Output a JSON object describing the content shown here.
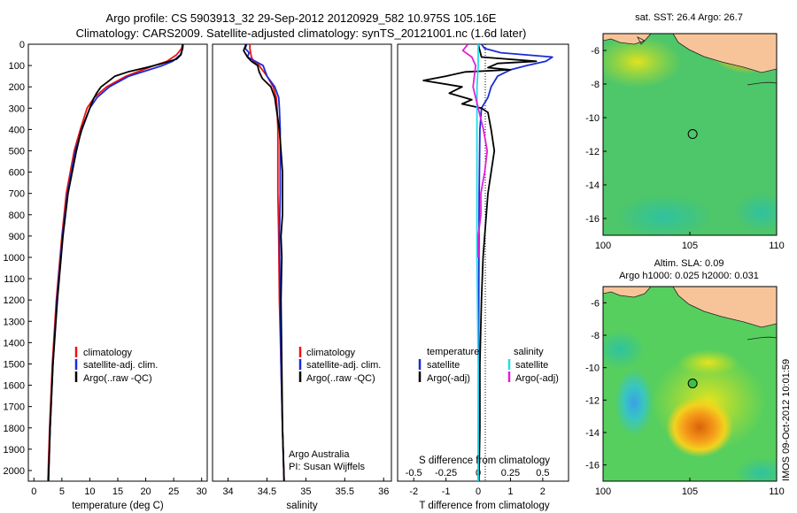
{
  "header": {
    "title_line1": "Argo profile: CS 5903913_32 29-Sep-2012 20120929_582 10.975S 105.16E",
    "title_line2": "Climatology: CARS2009. Satellite-adjusted climatology: synTS_20121001.nc (1.6d later)"
  },
  "colors": {
    "climatology": "#ee1111",
    "satellite": "#1a2bd6",
    "argo": "#000000",
    "sat_salinity": "#22dde8",
    "argo_salinity": "#e020d8",
    "land": "#f7c49a"
  },
  "chart_data": [
    {
      "type": "line",
      "id": "temperature",
      "xlabel": "temperature (deg C)",
      "ylabel": "",
      "xlim": [
        -1,
        31
      ],
      "ylim": [
        2050,
        0
      ],
      "xticks": [
        0,
        5,
        10,
        15,
        20,
        25,
        30
      ],
      "yticks": [
        0,
        100,
        200,
        300,
        400,
        500,
        600,
        700,
        800,
        900,
        1000,
        1100,
        1200,
        1300,
        1400,
        1500,
        1600,
        1700,
        1800,
        1900,
        2000
      ],
      "legend": [
        "climatology",
        "satellite-adj. clim.",
        "Argo(..raw -QC)"
      ],
      "series": [
        {
          "name": "climatology",
          "depth": [
            0,
            20,
            50,
            80,
            100,
            150,
            200,
            250,
            300,
            400,
            500,
            700,
            900,
            1200,
            1500,
            1800,
            2050
          ],
          "values": [
            26.6,
            26.4,
            25.5,
            23.8,
            21.5,
            16.5,
            13.0,
            10.8,
            9.5,
            8.3,
            7.2,
            5.8,
            5.0,
            4.0,
            3.3,
            2.8,
            2.5
          ]
        },
        {
          "name": "satellite-adj. clim.",
          "depth": [
            0,
            20,
            50,
            80,
            100,
            150,
            200,
            250,
            300,
            400,
            500,
            700,
            900,
            1200,
            1500,
            1800,
            2050
          ],
          "values": [
            26.7,
            26.6,
            26.2,
            24.8,
            23.0,
            17.0,
            13.5,
            11.3,
            10.0,
            8.6,
            7.4,
            6.0,
            5.1,
            4.1,
            3.4,
            2.9,
            2.6
          ]
        },
        {
          "name": "Argo(..raw -QC)",
          "depth": [
            0,
            20,
            50,
            70,
            90,
            110,
            130,
            150,
            180,
            200,
            230,
            260,
            300,
            400,
            500,
            700,
            900,
            1200,
            1500,
            1800,
            2050
          ],
          "values": [
            26.6,
            26.6,
            26.3,
            25.5,
            23.0,
            20.0,
            16.8,
            14.5,
            13.0,
            12.0,
            11.2,
            10.6,
            10.0,
            8.5,
            7.6,
            6.1,
            5.2,
            4.2,
            3.4,
            2.9,
            2.6
          ]
        }
      ]
    },
    {
      "type": "line",
      "id": "salinity",
      "xlabel": "salinity",
      "ylabel": "",
      "xlim": [
        33.8,
        36.1
      ],
      "ylim": [
        2050,
        0
      ],
      "xticks": [
        34,
        34.5,
        35,
        35.5,
        36
      ],
      "legend": [
        "climatology",
        "satellite-adj. clim.",
        "Argo(..raw -QC)"
      ],
      "annotations": [
        "Argo Australia",
        "PI: Susan Wijffels"
      ],
      "series": [
        {
          "name": "climatology",
          "depth": [
            0,
            20,
            40,
            60,
            80,
            100,
            150,
            200,
            250,
            300,
            400,
            500,
            700,
            900,
            1200,
            1500,
            1800,
            2050
          ],
          "values": [
            34.28,
            34.28,
            34.29,
            34.3,
            34.33,
            34.4,
            34.5,
            34.58,
            34.62,
            34.63,
            34.64,
            34.64,
            34.64,
            34.65,
            34.66,
            34.68,
            34.7,
            34.72
          ]
        },
        {
          "name": "satellite-adj. clim.",
          "depth": [
            0,
            20,
            40,
            60,
            80,
            100,
            150,
            200,
            250,
            300,
            400,
            500,
            700,
            900,
            1200,
            1500,
            1800,
            2050
          ],
          "values": [
            34.24,
            34.22,
            34.27,
            34.25,
            34.35,
            34.45,
            34.5,
            34.6,
            34.65,
            34.66,
            34.67,
            34.67,
            34.67,
            34.66,
            34.67,
            34.68,
            34.7,
            34.72
          ]
        },
        {
          "name": "Argo(..raw -QC)",
          "depth": [
            0,
            30,
            60,
            80,
            100,
            130,
            160,
            200,
            250,
            300,
            400,
            500,
            600,
            700,
            800,
            900,
            1000,
            1200,
            1500,
            1800,
            2050
          ],
          "values": [
            34.23,
            34.2,
            34.25,
            34.3,
            34.38,
            34.4,
            34.44,
            34.55,
            34.6,
            34.62,
            34.66,
            34.68,
            34.7,
            34.7,
            34.7,
            34.68,
            34.69,
            34.68,
            34.69,
            34.7,
            34.72
          ]
        }
      ]
    },
    {
      "type": "line",
      "id": "difference",
      "xlabel": "T difference from climatology",
      "xlabel_top": "S difference from climatology",
      "xlim": [
        -2.5,
        2.8
      ],
      "ylim": [
        2050,
        0
      ],
      "xticks": [
        -2,
        -1,
        0,
        1,
        2
      ],
      "xticks_top": [
        "-0.5",
        "-0.25",
        "0",
        "0.25",
        "0.5"
      ],
      "legend_titles": [
        "temperature",
        "salinity"
      ],
      "legend": [
        "satellite",
        "Argo(-adj)",
        "satellite",
        "Argo(-adj)"
      ],
      "series": [
        {
          "name": "temperature satellite",
          "depth": [
            0,
            20,
            40,
            60,
            80,
            100,
            120,
            150,
            200,
            250,
            300,
            400,
            700,
            1000,
            1500,
            2050
          ],
          "values": [
            0.1,
            0.2,
            0.7,
            2.3,
            2.1,
            1.5,
            1.0,
            0.6,
            0.4,
            0.3,
            0.1,
            0.05,
            0.03,
            0.02,
            0.01,
            0.0
          ]
        },
        {
          "name": "temperature Argo(-adj)",
          "depth": [
            0,
            60,
            80,
            90,
            110,
            120,
            130,
            150,
            170,
            200,
            230,
            260,
            280,
            300,
            320,
            400,
            500,
            700,
            900,
            1000,
            1200,
            1500,
            1800,
            2050
          ],
          "values": [
            0.0,
            0.1,
            1.8,
            0.6,
            0.3,
            1.0,
            -0.4,
            -1.0,
            -1.7,
            -0.5,
            -0.9,
            -0.2,
            -0.5,
            0.1,
            0.3,
            0.4,
            0.5,
            0.3,
            0.2,
            0.15,
            0.1,
            0.05,
            0.05,
            0.02
          ]
        },
        {
          "name": "salinity satellite",
          "depth": [
            0,
            100,
            200,
            400,
            700,
            1000,
            1500,
            2050
          ],
          "values": [
            0.0,
            0.0,
            -0.01,
            -0.01,
            -0.01,
            -0.01,
            0.0,
            0.0
          ]
        },
        {
          "name": "salinity Argo(-adj)",
          "depth": [
            0,
            30,
            60,
            100,
            200,
            250,
            300,
            400,
            500,
            600,
            700,
            800,
            900,
            1000
          ],
          "values": [
            -0.08,
            -0.12,
            -0.05,
            -0.02,
            -0.04,
            -0.02,
            0.0,
            0.04,
            0.07,
            0.05,
            0.02,
            0.02,
            0.0,
            0.0
          ]
        }
      ]
    },
    {
      "type": "heatmap",
      "id": "sst_map",
      "title": "sat. SST: 26.4  Argo: 26.7",
      "xlim": [
        100,
        110
      ],
      "ylim": [
        -17,
        -5
      ],
      "xticks": [
        100,
        105,
        110
      ],
      "yticks": [
        -6,
        -8,
        -10,
        -12,
        -14,
        -16
      ],
      "marker": {
        "lon": 105.16,
        "lat": -10.975
      }
    },
    {
      "type": "heatmap",
      "id": "sla_map",
      "title_line1": "Altim. SLA: 0.09",
      "title_line2": "Argo h1000: 0.025 h2000: 0.031",
      "xlim": [
        100,
        110
      ],
      "ylim": [
        -17,
        -5
      ],
      "xticks": [
        100,
        105,
        110
      ],
      "yticks": [
        -6,
        -8,
        -10,
        -12,
        -14,
        -16
      ],
      "marker": {
        "lon": 105.16,
        "lat": -10.975
      }
    }
  ],
  "footer": {
    "stamp": "IMOS 09-Oct-2012 10:01:59"
  }
}
